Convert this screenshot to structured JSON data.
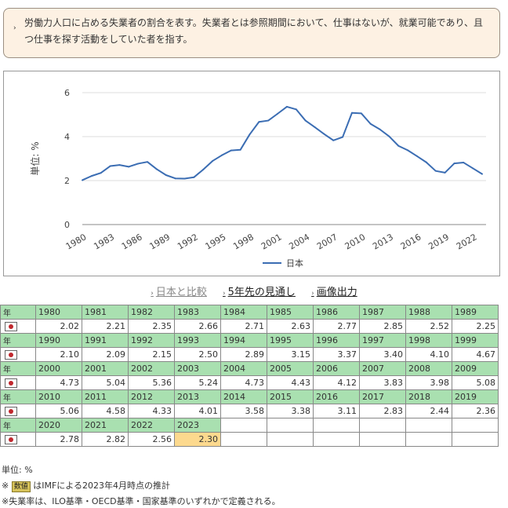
{
  "note": {
    "bullet": "›",
    "text": "労働力人口に占める失業者の割合を表す。失業者とは参照期間において、仕事はないが、就業可能であり、且つ仕事を探す活動をしていた者を指す。"
  },
  "chart_data": {
    "type": "line",
    "title": "",
    "xlabel": "",
    "ylabel": "単位: %",
    "ylim": [
      0,
      6
    ],
    "yticks": [
      "0",
      "2",
      "4",
      "6"
    ],
    "xticks": [
      "1980",
      "1983",
      "1986",
      "1989",
      "1992",
      "1995",
      "1998",
      "2001",
      "2004",
      "2007",
      "2010",
      "2013",
      "2016",
      "2019",
      "2022"
    ],
    "grid": true,
    "legend": "bottom",
    "x": [
      1980,
      1981,
      1982,
      1983,
      1984,
      1985,
      1986,
      1987,
      1988,
      1989,
      1990,
      1991,
      1992,
      1993,
      1994,
      1995,
      1996,
      1997,
      1998,
      1999,
      2000,
      2001,
      2002,
      2003,
      2004,
      2005,
      2006,
      2007,
      2008,
      2009,
      2010,
      2011,
      2012,
      2013,
      2014,
      2015,
      2016,
      2017,
      2018,
      2019,
      2020,
      2021,
      2022,
      2023
    ],
    "series": [
      {
        "name": "日本",
        "color": "#3b6db3",
        "values": [
          2.02,
          2.21,
          2.35,
          2.66,
          2.71,
          2.63,
          2.77,
          2.85,
          2.52,
          2.25,
          2.1,
          2.09,
          2.15,
          2.5,
          2.89,
          3.15,
          3.37,
          3.4,
          4.1,
          4.67,
          4.73,
          5.04,
          5.36,
          5.24,
          4.73,
          4.43,
          4.12,
          3.83,
          3.98,
          5.08,
          5.06,
          4.58,
          4.33,
          4.01,
          3.58,
          3.38,
          3.11,
          2.83,
          2.44,
          2.36,
          2.78,
          2.82,
          2.56,
          2.3
        ]
      }
    ]
  },
  "links": {
    "compare": "日本と比較",
    "forecast": "5年先の見通し",
    "image": "画像出力"
  },
  "table": {
    "year_label": "年",
    "country_icon": "japan-flag-icon",
    "rows": [
      {
        "years": [
          "1980",
          "1981",
          "1982",
          "1983",
          "1984",
          "1985",
          "1986",
          "1987",
          "1988",
          "1989"
        ],
        "values": [
          "2.02",
          "2.21",
          "2.35",
          "2.66",
          "2.71",
          "2.63",
          "2.77",
          "2.85",
          "2.52",
          "2.25"
        ]
      },
      {
        "years": [
          "1990",
          "1991",
          "1992",
          "1993",
          "1994",
          "1995",
          "1996",
          "1997",
          "1998",
          "1999"
        ],
        "values": [
          "2.10",
          "2.09",
          "2.15",
          "2.50",
          "2.89",
          "3.15",
          "3.37",
          "3.40",
          "4.10",
          "4.67"
        ]
      },
      {
        "years": [
          "2000",
          "2001",
          "2002",
          "2003",
          "2004",
          "2005",
          "2006",
          "2007",
          "2008",
          "2009"
        ],
        "values": [
          "4.73",
          "5.04",
          "5.36",
          "5.24",
          "4.73",
          "4.43",
          "4.12",
          "3.83",
          "3.98",
          "5.08"
        ]
      },
      {
        "years": [
          "2010",
          "2011",
          "2012",
          "2013",
          "2014",
          "2015",
          "2016",
          "2017",
          "2018",
          "2019"
        ],
        "values": [
          "5.06",
          "4.58",
          "4.33",
          "4.01",
          "3.58",
          "3.38",
          "3.11",
          "2.83",
          "2.44",
          "2.36"
        ]
      },
      {
        "years": [
          "2020",
          "2021",
          "2022",
          "2023"
        ],
        "values": [
          "2.78",
          "2.82",
          "2.56",
          "2.30"
        ],
        "estimate_year": "2023"
      }
    ],
    "colors": {
      "header": "#a9e0b0",
      "estimate": "#fcd98e"
    }
  },
  "footer": {
    "unit": "単位: %",
    "estimate_prefix": "※",
    "estimate_badge": "数値",
    "estimate_text": "はIMFによる2023年4月時点の推計",
    "definition": "※失業率は、ILO基準・OECD基準・国家基準のいずれかで定義される。"
  }
}
